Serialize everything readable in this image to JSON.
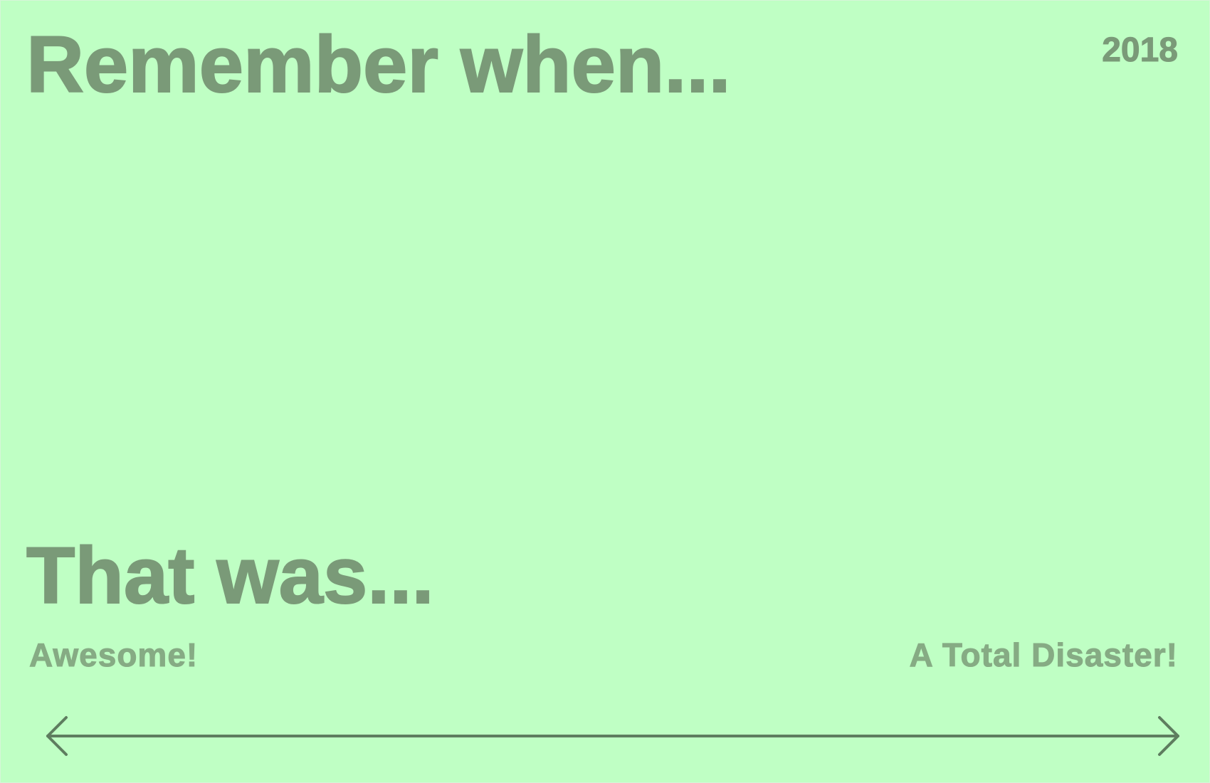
{
  "card": {
    "title_top": "Remember when...",
    "year": "2018",
    "title_bottom": "That was...",
    "scale": {
      "left_label": "Awesome!",
      "right_label": "A Total Disaster!"
    },
    "arrow_icon": "double-headed-arrow-icon"
  },
  "colors": {
    "background": "#bfffc4",
    "heading_text": "#7a9a78",
    "label_text": "#86ab84",
    "arrow": "#5e7d5f"
  }
}
